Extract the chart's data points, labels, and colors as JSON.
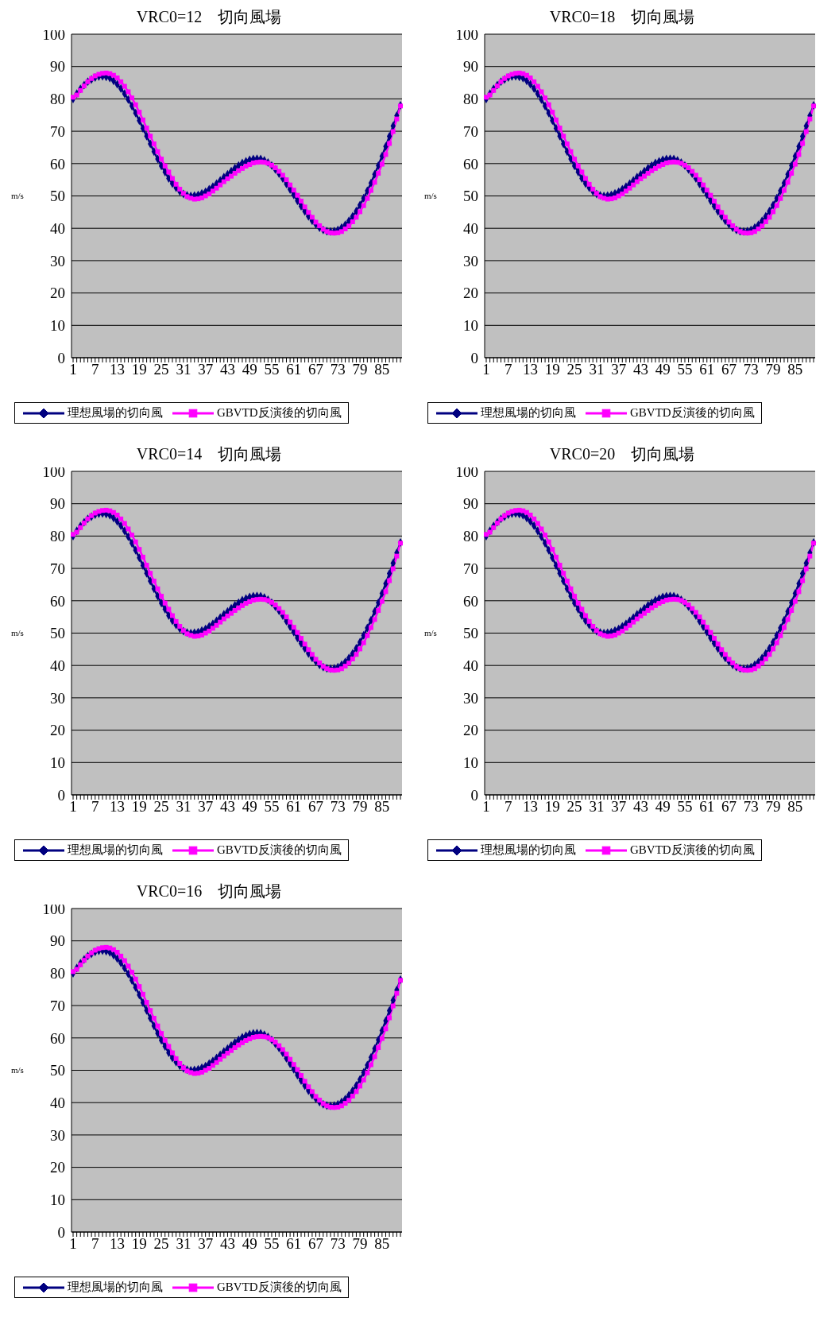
{
  "chart_data": [
    {
      "type": "line",
      "title": "VRC0=12　切向風場",
      "ylabel": "m/s",
      "categories": [
        "1",
        null,
        null,
        null,
        null,
        null,
        "7",
        null,
        null,
        null,
        null,
        null,
        "13",
        null,
        null,
        null,
        null,
        null,
        "19",
        null,
        null,
        null,
        null,
        null,
        "25",
        null,
        null,
        null,
        null,
        null,
        "31",
        null,
        null,
        null,
        null,
        null,
        "37",
        null,
        null,
        null,
        null,
        null,
        "43",
        null,
        null,
        null,
        null,
        null,
        "49",
        null,
        null,
        null,
        null,
        null,
        "55",
        null,
        null,
        null,
        null,
        null,
        "61",
        null,
        null,
        null,
        null,
        null,
        "67",
        null,
        null,
        null,
        null,
        null,
        "73",
        null,
        null,
        null,
        null,
        null,
        "79",
        null,
        null,
        null,
        null,
        null,
        "85",
        null,
        null,
        null,
        null,
        null
      ],
      "ylim": [
        0,
        100
      ],
      "yticks": [
        0,
        10,
        20,
        30,
        40,
        50,
        60,
        70,
        80,
        90,
        100
      ],
      "grid": "y",
      "legend": "bottom",
      "series": [
        {
          "name": "理想風場的切向風",
          "color": "#000080",
          "marker": "diamond",
          "values": [
            80,
            81.6,
            83.1,
            84.3,
            85.3,
            86.0,
            86.6,
            86.9,
            87,
            86.8,
            86.4,
            85.6,
            84.5,
            83.2,
            81.6,
            79.8,
            77.8,
            75.6,
            73.3,
            70.9,
            68.5,
            66.1,
            63.7,
            61.4,
            59.3,
            57.4,
            55.4,
            53.8,
            52.5,
            51.4,
            50.6,
            50.2,
            50,
            50.1,
            50.3,
            50.8,
            51.3,
            52.1,
            52.9,
            53.8,
            54.8,
            55.8,
            56.7,
            57.7,
            58.6,
            59.4,
            60.2,
            60.7,
            61.2,
            61.4,
            61.5,
            61.4,
            61.0,
            60.3,
            59.4,
            58.2,
            56.9,
            55.4,
            53.7,
            52.0,
            50.3,
            48.5,
            46.8,
            45.2,
            43.7,
            42.3,
            41.2,
            40.2,
            39.5,
            39.1,
            39,
            39.1,
            39.5,
            40.2,
            41.1,
            42.3,
            43.7,
            45.3,
            47.2,
            49.3,
            51.6,
            54.0,
            56.7,
            59.4,
            62.3,
            65.3,
            68.4,
            71.6,
            74.8,
            78
          ]
        },
        {
          "name": "GBVTD反演後的切向風",
          "color": "#ff00ff",
          "marker": "square",
          "values": [
            80.5,
            81.2,
            82.6,
            84.0,
            85.3,
            86.3,
            87.1,
            87.6,
            87.9,
            88.0,
            87.8,
            87.3,
            86.5,
            85.3,
            83.9,
            82.2,
            80.3,
            78.2,
            75.9,
            73.5,
            71.0,
            68.5,
            66.1,
            63.7,
            61.4,
            59.3,
            57.4,
            55.4,
            53.6,
            52.1,
            50.8,
            49.8,
            49.3,
            49,
            49.1,
            49.4,
            50.0,
            50.6,
            51.5,
            52.4,
            53.4,
            54.4,
            55.3,
            56.1,
            57.0,
            57.8,
            58.5,
            59.2,
            59.7,
            60.2,
            60.4,
            60.5,
            60.4,
            60.1,
            59.5,
            58.7,
            57.6,
            56.4,
            55.0,
            53.4,
            51.8,
            50.2,
            48.4,
            46.6,
            44.9,
            43.4,
            41.9,
            40.8,
            39.7,
            39.0,
            38.6,
            38.5,
            38.6,
            39.0,
            39.8,
            40.7,
            42.0,
            43.4,
            45.1,
            47.0,
            49.2,
            51.7,
            54.2,
            57.0,
            59.8,
            62.8,
            66.2,
            69.9,
            73.8,
            77.8
          ]
        }
      ]
    },
    {
      "type": "line",
      "title": "VRC0=18　切向風場",
      "ylabel": "m/s",
      "categories": [
        "1",
        null,
        null,
        null,
        null,
        null,
        "7",
        null,
        null,
        null,
        null,
        null,
        "13",
        null,
        null,
        null,
        null,
        null,
        "19",
        null,
        null,
        null,
        null,
        null,
        "25",
        null,
        null,
        null,
        null,
        null,
        "31",
        null,
        null,
        null,
        null,
        null,
        "37",
        null,
        null,
        null,
        null,
        null,
        "43",
        null,
        null,
        null,
        null,
        null,
        "49",
        null,
        null,
        null,
        null,
        null,
        "55",
        null,
        null,
        null,
        null,
        null,
        "61",
        null,
        null,
        null,
        null,
        null,
        "67",
        null,
        null,
        null,
        null,
        null,
        "73",
        null,
        null,
        null,
        null,
        null,
        "79",
        null,
        null,
        null,
        null,
        null,
        "85",
        null,
        null,
        null,
        null,
        null
      ],
      "ylim": [
        0,
        100
      ],
      "yticks": [
        0,
        10,
        20,
        30,
        40,
        50,
        60,
        70,
        80,
        90,
        100
      ],
      "grid": "y",
      "legend": "bottom",
      "series": [
        {
          "name": "理想風場的切向風",
          "color": "#000080",
          "marker": "diamond",
          "values": [
            80,
            81.6,
            83.1,
            84.3,
            85.3,
            86.0,
            86.6,
            86.9,
            87,
            86.8,
            86.4,
            85.6,
            84.5,
            83.2,
            81.6,
            79.8,
            77.8,
            75.6,
            73.3,
            70.9,
            68.5,
            66.1,
            63.7,
            61.4,
            59.3,
            57.4,
            55.4,
            53.8,
            52.5,
            51.4,
            50.6,
            50.2,
            50,
            50.1,
            50.3,
            50.8,
            51.3,
            52.1,
            52.9,
            53.8,
            54.8,
            55.8,
            56.7,
            57.7,
            58.6,
            59.4,
            60.2,
            60.7,
            61.2,
            61.4,
            61.5,
            61.4,
            61.0,
            60.3,
            59.4,
            58.2,
            56.9,
            55.4,
            53.7,
            52.0,
            50.3,
            48.5,
            46.8,
            45.2,
            43.7,
            42.3,
            41.2,
            40.2,
            39.5,
            39.1,
            39,
            39.1,
            39.5,
            40.2,
            41.1,
            42.3,
            43.7,
            45.3,
            47.2,
            49.3,
            51.6,
            54.0,
            56.7,
            59.4,
            62.3,
            65.3,
            68.4,
            71.6,
            74.8,
            78
          ]
        },
        {
          "name": "GBVTD反演後的切向風",
          "color": "#ff00ff",
          "marker": "square",
          "values": [
            80.5,
            81.2,
            82.6,
            84.0,
            85.3,
            86.3,
            87.1,
            87.6,
            87.9,
            88.0,
            87.8,
            87.3,
            86.5,
            85.3,
            83.9,
            82.2,
            80.3,
            78.2,
            75.9,
            73.5,
            71.0,
            68.5,
            66.1,
            63.7,
            61.4,
            59.3,
            57.4,
            55.4,
            53.6,
            52.1,
            50.8,
            49.8,
            49.3,
            49,
            49.1,
            49.4,
            50.0,
            50.6,
            51.5,
            52.4,
            53.4,
            54.4,
            55.3,
            56.1,
            57.0,
            57.8,
            58.5,
            59.2,
            59.7,
            60.2,
            60.4,
            60.5,
            60.4,
            60.1,
            59.5,
            58.7,
            57.6,
            56.4,
            55.0,
            53.4,
            51.8,
            50.2,
            48.4,
            46.6,
            44.9,
            43.4,
            41.9,
            40.8,
            39.7,
            39.0,
            38.6,
            38.5,
            38.6,
            39.0,
            39.8,
            40.7,
            42.0,
            43.4,
            45.1,
            47.0,
            49.2,
            51.7,
            54.2,
            57.0,
            59.8,
            62.8,
            66.2,
            69.9,
            73.8,
            77.8
          ]
        }
      ]
    },
    {
      "type": "line",
      "title": "VRC0=14　切向風場",
      "ylabel": "m/s",
      "categories": [
        "1",
        null,
        null,
        null,
        null,
        null,
        "7",
        null,
        null,
        null,
        null,
        null,
        "13",
        null,
        null,
        null,
        null,
        null,
        "19",
        null,
        null,
        null,
        null,
        null,
        "25",
        null,
        null,
        null,
        null,
        null,
        "31",
        null,
        null,
        null,
        null,
        null,
        "37",
        null,
        null,
        null,
        null,
        null,
        "43",
        null,
        null,
        null,
        null,
        null,
        "49",
        null,
        null,
        null,
        null,
        null,
        "55",
        null,
        null,
        null,
        null,
        null,
        "61",
        null,
        null,
        null,
        null,
        null,
        "67",
        null,
        null,
        null,
        null,
        null,
        "73",
        null,
        null,
        null,
        null,
        null,
        "79",
        null,
        null,
        null,
        null,
        null,
        "85",
        null,
        null,
        null,
        null,
        null
      ],
      "ylim": [
        0,
        100
      ],
      "yticks": [
        0,
        10,
        20,
        30,
        40,
        50,
        60,
        70,
        80,
        90,
        100
      ],
      "grid": "y",
      "legend": "bottom",
      "series": [
        {
          "name": "理想風場的切向風",
          "color": "#000080",
          "marker": "diamond",
          "values": [
            80,
            81.6,
            83.1,
            84.3,
            85.3,
            86.0,
            86.6,
            86.9,
            87,
            86.8,
            86.4,
            85.6,
            84.5,
            83.2,
            81.6,
            79.8,
            77.8,
            75.6,
            73.3,
            70.9,
            68.5,
            66.1,
            63.7,
            61.4,
            59.3,
            57.4,
            55.4,
            53.8,
            52.5,
            51.4,
            50.6,
            50.2,
            50,
            50.1,
            50.3,
            50.8,
            51.3,
            52.1,
            52.9,
            53.8,
            54.8,
            55.8,
            56.7,
            57.7,
            58.6,
            59.4,
            60.2,
            60.7,
            61.2,
            61.4,
            61.5,
            61.4,
            61.0,
            60.3,
            59.4,
            58.2,
            56.9,
            55.4,
            53.7,
            52.0,
            50.3,
            48.5,
            46.8,
            45.2,
            43.7,
            42.3,
            41.2,
            40.2,
            39.5,
            39.1,
            39,
            39.1,
            39.5,
            40.2,
            41.1,
            42.3,
            43.7,
            45.3,
            47.2,
            49.3,
            51.6,
            54.0,
            56.7,
            59.4,
            62.3,
            65.3,
            68.4,
            71.6,
            74.8,
            78
          ]
        },
        {
          "name": "GBVTD反演後的切向風",
          "color": "#ff00ff",
          "marker": "square",
          "values": [
            80.5,
            81.2,
            82.6,
            84.0,
            85.3,
            86.3,
            87.1,
            87.6,
            87.9,
            88.0,
            87.8,
            87.3,
            86.5,
            85.3,
            83.9,
            82.2,
            80.3,
            78.2,
            75.9,
            73.5,
            71.0,
            68.5,
            66.1,
            63.7,
            61.4,
            59.3,
            57.4,
            55.4,
            53.6,
            52.1,
            50.8,
            49.8,
            49.3,
            49,
            49.1,
            49.4,
            50.0,
            50.6,
            51.5,
            52.4,
            53.4,
            54.4,
            55.3,
            56.1,
            57.0,
            57.8,
            58.5,
            59.2,
            59.7,
            60.2,
            60.4,
            60.5,
            60.4,
            60.1,
            59.5,
            58.7,
            57.6,
            56.4,
            55.0,
            53.4,
            51.8,
            50.2,
            48.4,
            46.6,
            44.9,
            43.4,
            41.9,
            40.8,
            39.7,
            39.0,
            38.6,
            38.5,
            38.6,
            39.0,
            39.8,
            40.7,
            42.0,
            43.4,
            45.1,
            47.0,
            49.2,
            51.7,
            54.2,
            57.0,
            59.8,
            62.8,
            66.2,
            69.9,
            73.8,
            77.8
          ]
        }
      ]
    },
    {
      "type": "line",
      "title": "VRC0=20　切向風場",
      "ylabel": "m/s",
      "categories": [
        "1",
        null,
        null,
        null,
        null,
        null,
        "7",
        null,
        null,
        null,
        null,
        null,
        "13",
        null,
        null,
        null,
        null,
        null,
        "19",
        null,
        null,
        null,
        null,
        null,
        "25",
        null,
        null,
        null,
        null,
        null,
        "31",
        null,
        null,
        null,
        null,
        null,
        "37",
        null,
        null,
        null,
        null,
        null,
        "43",
        null,
        null,
        null,
        null,
        null,
        "49",
        null,
        null,
        null,
        null,
        null,
        "55",
        null,
        null,
        null,
        null,
        null,
        "61",
        null,
        null,
        null,
        null,
        null,
        "67",
        null,
        null,
        null,
        null,
        null,
        "73",
        null,
        null,
        null,
        null,
        null,
        "79",
        null,
        null,
        null,
        null,
        null,
        "85",
        null,
        null,
        null,
        null,
        null
      ],
      "ylim": [
        0,
        100
      ],
      "yticks": [
        0,
        10,
        20,
        30,
        40,
        50,
        60,
        70,
        80,
        90,
        100
      ],
      "grid": "y",
      "legend": "bottom",
      "series": [
        {
          "name": "理想風場的切向風",
          "color": "#000080",
          "marker": "diamond",
          "values": [
            80,
            81.6,
            83.1,
            84.3,
            85.3,
            86.0,
            86.6,
            86.9,
            87,
            86.8,
            86.4,
            85.6,
            84.5,
            83.2,
            81.6,
            79.8,
            77.8,
            75.6,
            73.3,
            70.9,
            68.5,
            66.1,
            63.7,
            61.4,
            59.3,
            57.4,
            55.4,
            53.8,
            52.5,
            51.4,
            50.6,
            50.2,
            50,
            50.1,
            50.3,
            50.8,
            51.3,
            52.1,
            52.9,
            53.8,
            54.8,
            55.8,
            56.7,
            57.7,
            58.6,
            59.4,
            60.2,
            60.7,
            61.2,
            61.4,
            61.5,
            61.4,
            61.0,
            60.3,
            59.4,
            58.2,
            56.9,
            55.4,
            53.7,
            52.0,
            50.3,
            48.5,
            46.8,
            45.2,
            43.7,
            42.3,
            41.2,
            40.2,
            39.5,
            39.1,
            39,
            39.1,
            39.5,
            40.2,
            41.1,
            42.3,
            43.7,
            45.3,
            47.2,
            49.3,
            51.6,
            54.0,
            56.7,
            59.4,
            62.3,
            65.3,
            68.4,
            71.6,
            74.8,
            78
          ]
        },
        {
          "name": "GBVTD反演後的切向風",
          "color": "#ff00ff",
          "marker": "square",
          "values": [
            80.5,
            81.2,
            82.6,
            84.0,
            85.3,
            86.3,
            87.1,
            87.6,
            87.9,
            88.0,
            87.8,
            87.3,
            86.5,
            85.3,
            83.9,
            82.2,
            80.3,
            78.2,
            75.9,
            73.5,
            71.0,
            68.5,
            66.1,
            63.7,
            61.4,
            59.3,
            57.4,
            55.4,
            53.6,
            52.1,
            50.8,
            49.8,
            49.3,
            49,
            49.1,
            49.4,
            50.0,
            50.6,
            51.5,
            52.4,
            53.4,
            54.4,
            55.3,
            56.1,
            57.0,
            57.8,
            58.5,
            59.2,
            59.7,
            60.2,
            60.4,
            60.5,
            60.4,
            60.1,
            59.5,
            58.7,
            57.6,
            56.4,
            55.0,
            53.4,
            51.8,
            50.2,
            48.4,
            46.6,
            44.9,
            43.4,
            41.9,
            40.8,
            39.7,
            39.0,
            38.6,
            38.5,
            38.6,
            39.0,
            39.8,
            40.7,
            42.0,
            43.4,
            45.1,
            47.0,
            49.2,
            51.7,
            54.2,
            57.0,
            59.8,
            62.8,
            66.2,
            69.9,
            73.8,
            77.8
          ]
        }
      ]
    },
    {
      "type": "line",
      "title": "VRC0=16　切向風場",
      "ylabel": "m/s",
      "categories": [
        "1",
        null,
        null,
        null,
        null,
        null,
        "7",
        null,
        null,
        null,
        null,
        null,
        "13",
        null,
        null,
        null,
        null,
        null,
        "19",
        null,
        null,
        null,
        null,
        null,
        "25",
        null,
        null,
        null,
        null,
        null,
        "31",
        null,
        null,
        null,
        null,
        null,
        "37",
        null,
        null,
        null,
        null,
        null,
        "43",
        null,
        null,
        null,
        null,
        null,
        "49",
        null,
        null,
        null,
        null,
        null,
        "55",
        null,
        null,
        null,
        null,
        null,
        "61",
        null,
        null,
        null,
        null,
        null,
        "67",
        null,
        null,
        null,
        null,
        null,
        "73",
        null,
        null,
        null,
        null,
        null,
        "79",
        null,
        null,
        null,
        null,
        null,
        "85",
        null,
        null,
        null,
        null,
        null
      ],
      "ylim": [
        0,
        100
      ],
      "yticks": [
        0,
        10,
        20,
        30,
        40,
        50,
        60,
        70,
        80,
        90,
        100
      ],
      "grid": "y",
      "legend": "bottom",
      "series": [
        {
          "name": "理想風場的切向風",
          "color": "#000080",
          "marker": "diamond",
          "values": [
            80,
            81.6,
            83.1,
            84.3,
            85.3,
            86.0,
            86.6,
            86.9,
            87,
            86.8,
            86.4,
            85.6,
            84.5,
            83.2,
            81.6,
            79.8,
            77.8,
            75.6,
            73.3,
            70.9,
            68.5,
            66.1,
            63.7,
            61.4,
            59.3,
            57.4,
            55.4,
            53.8,
            52.5,
            51.4,
            50.6,
            50.2,
            50,
            50.1,
            50.3,
            50.8,
            51.3,
            52.1,
            52.9,
            53.8,
            54.8,
            55.8,
            56.7,
            57.7,
            58.6,
            59.4,
            60.2,
            60.7,
            61.2,
            61.4,
            61.5,
            61.4,
            61.0,
            60.3,
            59.4,
            58.2,
            56.9,
            55.4,
            53.7,
            52.0,
            50.3,
            48.5,
            46.8,
            45.2,
            43.7,
            42.3,
            41.2,
            40.2,
            39.5,
            39.1,
            39,
            39.1,
            39.5,
            40.2,
            41.1,
            42.3,
            43.7,
            45.3,
            47.2,
            49.3,
            51.6,
            54.0,
            56.7,
            59.4,
            62.3,
            65.3,
            68.4,
            71.6,
            74.8,
            78
          ]
        },
        {
          "name": "GBVTD反演後的切向風",
          "color": "#ff00ff",
          "marker": "square",
          "values": [
            80.5,
            81.2,
            82.6,
            84.0,
            85.3,
            86.3,
            87.1,
            87.6,
            87.9,
            88.0,
            87.8,
            87.3,
            86.5,
            85.3,
            83.9,
            82.2,
            80.3,
            78.2,
            75.9,
            73.5,
            71.0,
            68.5,
            66.1,
            63.7,
            61.4,
            59.3,
            57.4,
            55.4,
            53.6,
            52.1,
            50.8,
            49.8,
            49.3,
            49,
            49.1,
            49.4,
            50.0,
            50.6,
            51.5,
            52.4,
            53.4,
            54.4,
            55.3,
            56.1,
            57.0,
            57.8,
            58.5,
            59.2,
            59.7,
            60.2,
            60.4,
            60.5,
            60.4,
            60.1,
            59.5,
            58.7,
            57.6,
            56.4,
            55.0,
            53.4,
            51.8,
            50.2,
            48.4,
            46.6,
            44.9,
            43.4,
            41.9,
            40.8,
            39.7,
            39.0,
            38.6,
            38.5,
            38.6,
            39.0,
            39.8,
            40.7,
            42.0,
            43.4,
            45.1,
            47.0,
            49.2,
            51.7,
            54.2,
            57.0,
            59.8,
            62.8,
            66.2,
            69.9,
            73.8,
            77.8
          ]
        }
      ]
    }
  ]
}
